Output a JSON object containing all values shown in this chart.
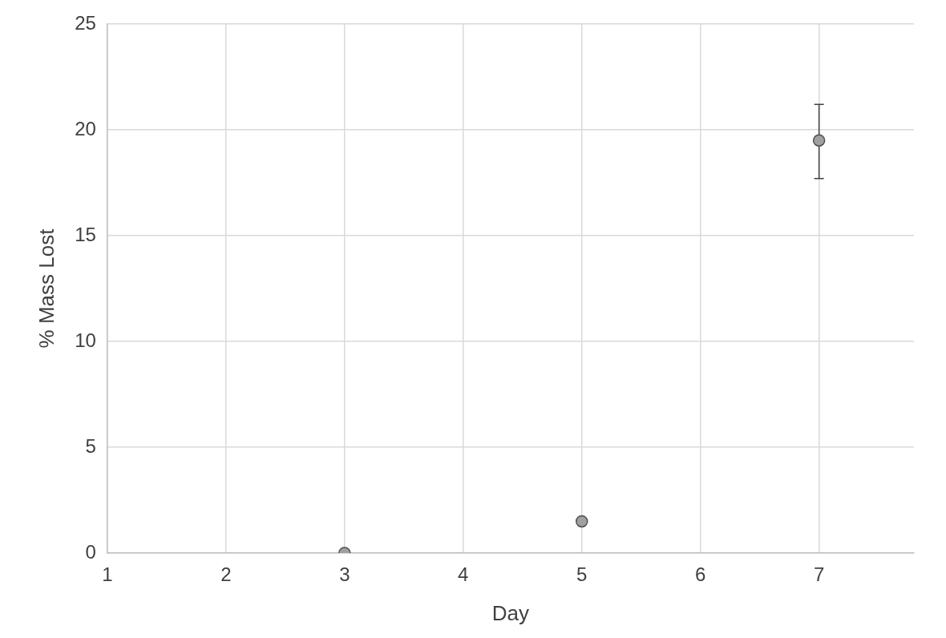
{
  "chart_data": {
    "type": "scatter",
    "xlabel": "Day",
    "ylabel": "% Mass Lost",
    "x": [
      3,
      5,
      7
    ],
    "series": [
      {
        "color": "#a0a0a0",
        "values": [
          0,
          1.5,
          19.5
        ],
        "errors": [
          null,
          null,
          [
            17.7,
            21.2
          ]
        ]
      }
    ],
    "xlim": [
      1,
      7.8
    ],
    "xticks": [
      1,
      2,
      3,
      4,
      5,
      6,
      7
    ],
    "ylim": [
      0,
      25
    ],
    "yticks": [
      0,
      5,
      10,
      15,
      20,
      25
    ],
    "grid": true,
    "legend": false,
    "marker": "circle"
  }
}
